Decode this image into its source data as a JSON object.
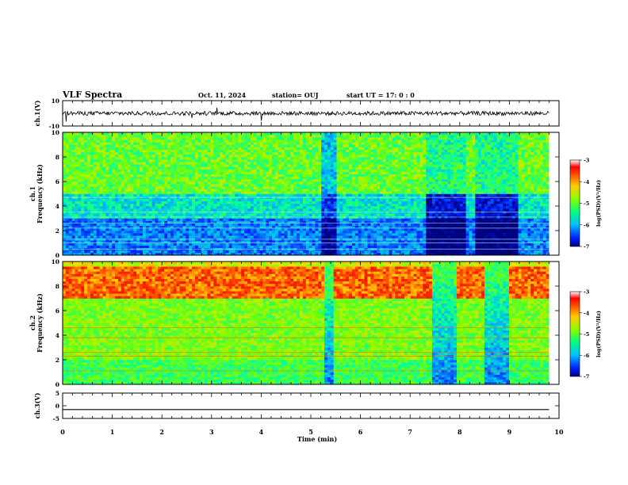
{
  "header": {
    "title": "VLF Spectra",
    "date": "Oct. 11, 2024",
    "station": "station= OUJ",
    "start": "start  UT =   17: 0  : 0"
  },
  "colorbar": {
    "label": "log(PSD)(V²/Hz)",
    "ticks": [
      "-3",
      "-4",
      "-5",
      "-6",
      "-7"
    ]
  },
  "chart_data": [
    {
      "type": "line",
      "panel": "ch.1 waveform",
      "ylabel": "ch.1(V)",
      "ylim": [
        -10,
        10
      ],
      "yticks": [
        "10",
        "-10"
      ],
      "baseline_value": 0
    },
    {
      "type": "heatmap",
      "panel": "ch.1 spectrogram",
      "ylabel": "ch.1\nFrequency (kHz)",
      "ylim": [
        0,
        10
      ],
      "yticks": [
        "0",
        "2",
        "4",
        "6",
        "8",
        "10"
      ],
      "colorscale_range": [
        -7,
        -3
      ]
    },
    {
      "type": "heatmap",
      "panel": "ch.2 spectrogram",
      "ylabel": "ch.2\nFrequency (kHz)",
      "ylim": [
        0,
        10
      ],
      "yticks": [
        "0",
        "2",
        "4",
        "6",
        "8",
        "10"
      ],
      "colorscale_range": [
        -7,
        -3
      ]
    },
    {
      "type": "line",
      "panel": "ch.3 waveform",
      "ylabel": "ch.3(V)",
      "ylim": [
        -5,
        5
      ],
      "yticks": [
        "5",
        "0",
        "-5"
      ],
      "baseline_value": -1.5
    }
  ],
  "xaxis": {
    "label": "Time  (min)",
    "range": [
      0,
      10
    ],
    "ticks": [
      "0",
      "1",
      "2",
      "3",
      "4",
      "5",
      "6",
      "7",
      "8",
      "9",
      "10"
    ],
    "data_end": 9.8
  }
}
